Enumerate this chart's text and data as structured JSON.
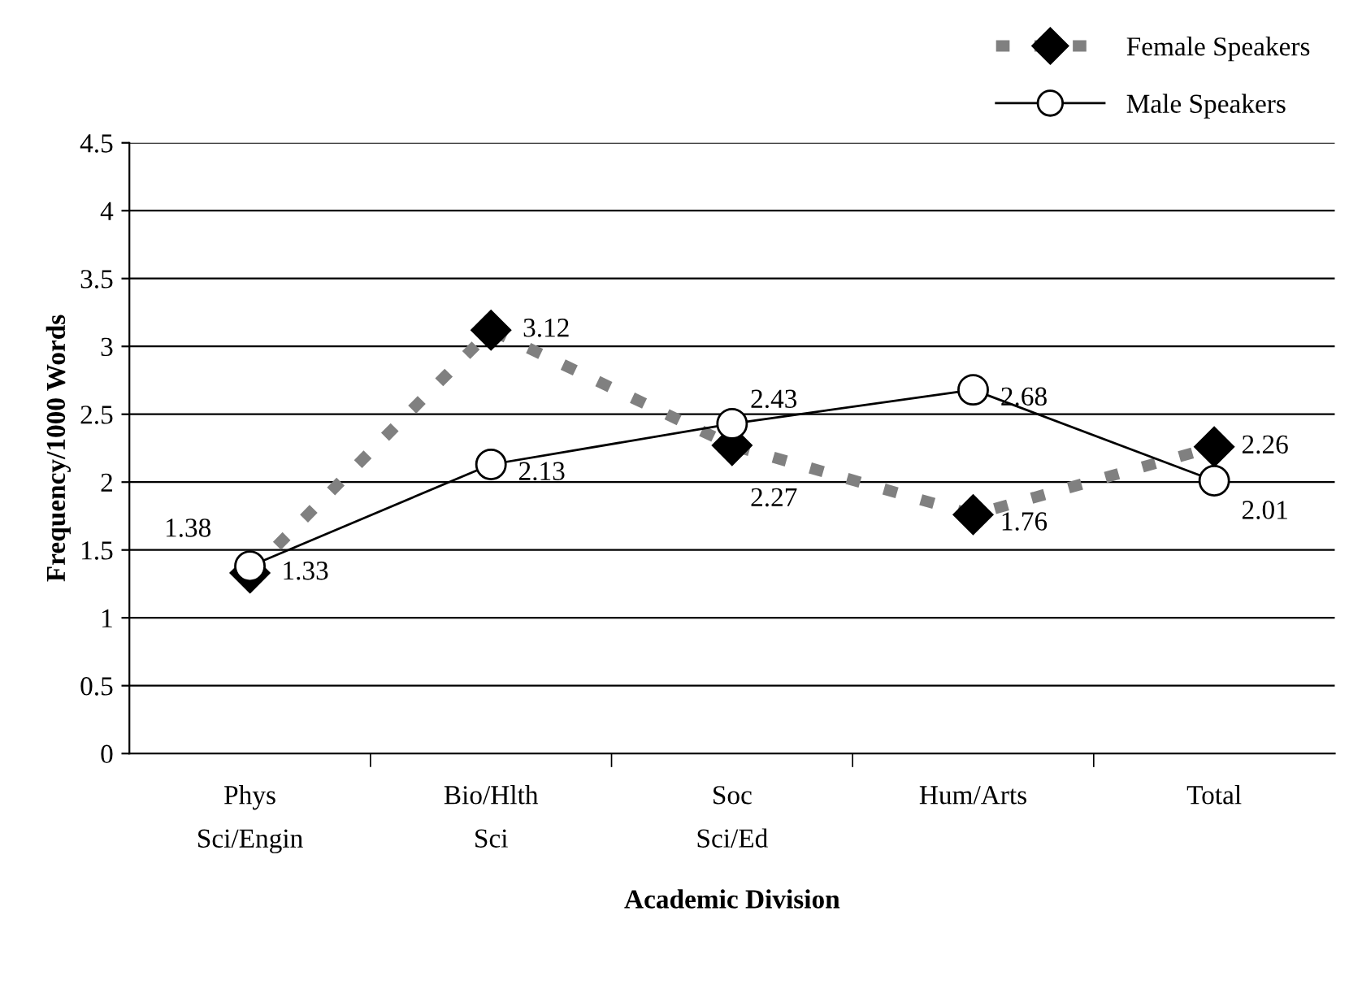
{
  "chart_data": {
    "type": "line",
    "xlabel": "Academic Division",
    "ylabel": "Frequency/1000 Words",
    "categories": [
      "Phys\nSci/Engin",
      "Bio/Hlth\nSci",
      "Soc\nSci/Ed",
      "Hum/Arts",
      "Total"
    ],
    "series": [
      {
        "name": "Female Speakers",
        "color": "#808080",
        "marker": "diamond",
        "line_style": "dashed",
        "values": [
          1.33,
          3.12,
          2.27,
          1.76,
          2.26
        ]
      },
      {
        "name": "Male Speakers",
        "color": "#000000",
        "marker": "circle",
        "line_style": "solid",
        "values": [
          1.38,
          2.13,
          2.43,
          2.68,
          2.01
        ]
      }
    ],
    "ylim": [
      0,
      4.5
    ],
    "yticks": [
      0,
      0.5,
      1,
      1.5,
      2,
      2.5,
      3,
      3.5,
      4,
      4.5
    ],
    "grid": "y",
    "legend": "top right",
    "data_labels": true
  }
}
